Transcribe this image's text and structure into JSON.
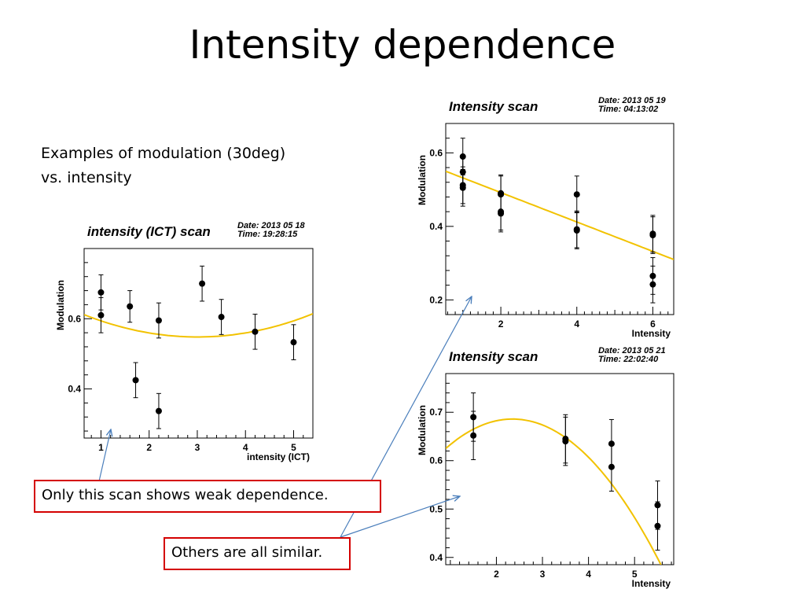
{
  "slide": {
    "title": "Intensity dependence",
    "subtitle_line1": "Examples of modulation (30deg)",
    "subtitle_line2": "vs. intensity",
    "callout_weak": "Only this scan shows weak dependence.",
    "callout_similar": "Others are all similar."
  },
  "colors": {
    "fit": "#f2c200",
    "arrow": "#4a7ebb",
    "callout_border": "#d40000"
  },
  "chart_data": [
    {
      "type": "scatter",
      "title": "intensity (ICT) scan",
      "date": "Date: 2013 05 18",
      "time": "Time: 19:28:15",
      "xlabel": "intensity (ICT)",
      "ylabel": "Modulation",
      "xlim": [
        0.65,
        5.4
      ],
      "ylim": [
        0.26,
        0.8
      ],
      "xticks": [
        1,
        2,
        3,
        4,
        5
      ],
      "yticks": [
        0.4,
        0.6
      ],
      "x": [
        1.0,
        1.0,
        1.6,
        1.72,
        2.2,
        2.2,
        3.1,
        3.5,
        4.2,
        5.0
      ],
      "y": [
        0.675,
        0.61,
        0.635,
        0.425,
        0.595,
        0.337,
        0.7,
        0.605,
        0.563,
        0.533
      ],
      "yerr": [
        0.05,
        0.05,
        0.045,
        0.05,
        0.05,
        0.05,
        0.05,
        0.05,
        0.05,
        0.05
      ],
      "fit": {
        "kind": "quadratic",
        "a": 0.0115,
        "vertex": 3.0,
        "c": 0.548
      }
    },
    {
      "type": "scatter",
      "title": "Intensity scan",
      "date": "Date: 2013 05 19",
      "time": "Time: 04:13:02",
      "xlabel": "Intensity",
      "ylabel": "Modulation",
      "xlim": [
        0.55,
        6.55
      ],
      "ylim": [
        0.16,
        0.68
      ],
      "xticks": [
        2,
        4,
        6
      ],
      "yticks": [
        0.2,
        0.4,
        0.6
      ],
      "x": [
        1.0,
        1.0,
        1.0,
        1.0,
        2.0,
        2.0,
        2.0,
        2.0,
        4.0,
        4.0,
        4.0,
        6.0,
        6.0,
        6.0,
        6.0
      ],
      "y": [
        0.59,
        0.548,
        0.512,
        0.505,
        0.49,
        0.487,
        0.44,
        0.435,
        0.487,
        0.392,
        0.389,
        0.38,
        0.376,
        0.265,
        0.242
      ],
      "yerr": [
        0.05,
        0.045,
        0.05,
        0.05,
        0.05,
        0.05,
        0.05,
        0.05,
        0.05,
        0.05,
        0.05,
        0.05,
        0.05,
        0.05,
        0.05
      ],
      "fit": {
        "kind": "linear",
        "x": [
          0.55,
          6.55
        ],
        "y": [
          0.55,
          0.31
        ]
      }
    },
    {
      "type": "scatter",
      "title": "Intensity scan",
      "date": "Date: 2013 05 21",
      "time": "Time: 22:02:40",
      "xlabel": "Intensity",
      "ylabel": "Modulation",
      "xlim": [
        0.9,
        5.85
      ],
      "ylim": [
        0.385,
        0.78
      ],
      "xticks": [
        2,
        3,
        4,
        5
      ],
      "yticks": [
        0.4,
        0.5,
        0.6,
        0.7
      ],
      "x": [
        1.5,
        1.5,
        3.5,
        3.5,
        4.5,
        4.5,
        5.5,
        5.5
      ],
      "y": [
        0.69,
        0.652,
        0.645,
        0.64,
        0.635,
        0.587,
        0.508,
        0.465
      ],
      "yerr": [
        0.05,
        0.05,
        0.05,
        0.05,
        0.05,
        0.05,
        0.05,
        0.05
      ],
      "fit": {
        "kind": "quadratic",
        "a": -0.029,
        "vertex": 2.35,
        "c": 0.686
      }
    }
  ]
}
